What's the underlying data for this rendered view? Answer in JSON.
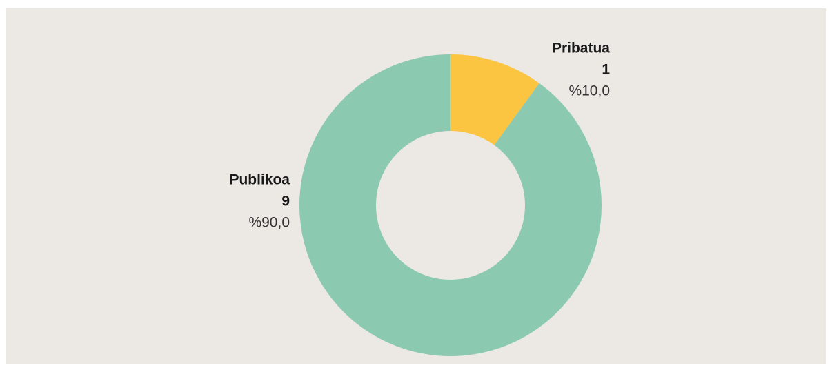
{
  "chart_data": {
    "type": "donut",
    "categories": [
      "Pribatua",
      "Publikoa"
    ],
    "values": [
      1,
      9
    ],
    "percentages": [
      10,
      90
    ],
    "percentage_labels": [
      "%10,0",
      "%90,0"
    ],
    "colors": [
      "#fbc441",
      "#8bc9b0"
    ]
  }
}
